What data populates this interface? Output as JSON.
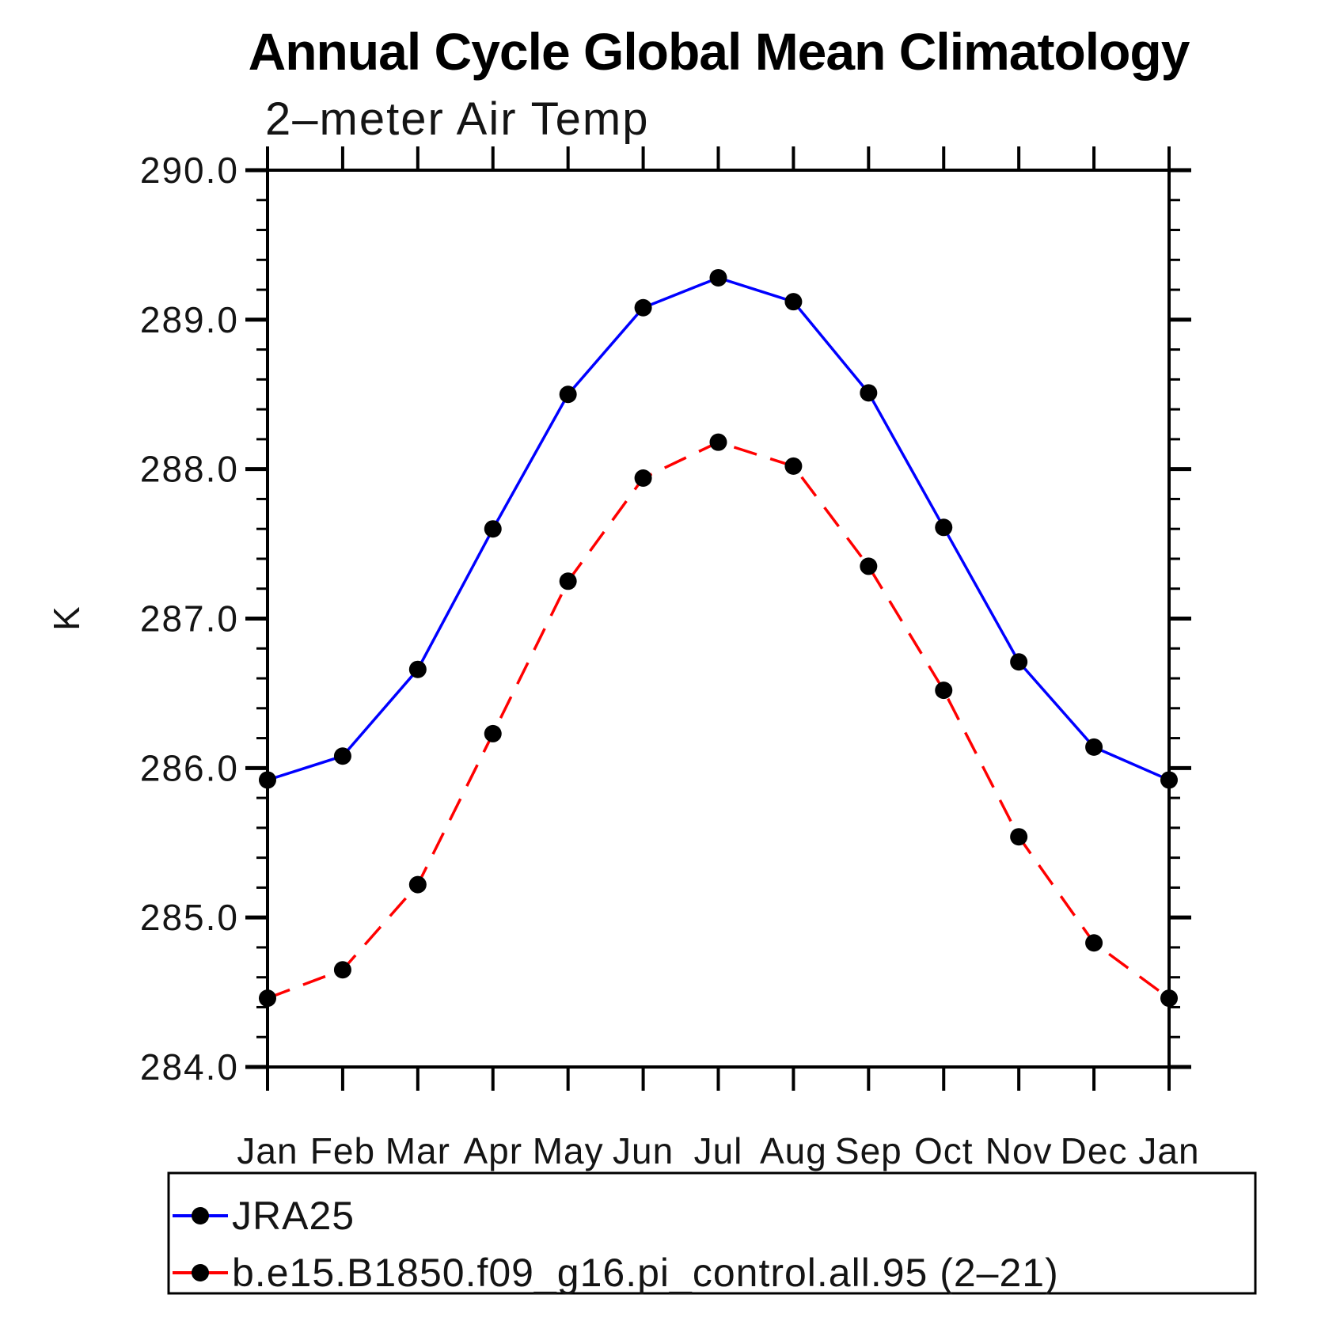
{
  "page": {
    "background": "#ffffff",
    "title": "Annual Cycle Global Mean Climatology"
  },
  "chart_data": {
    "type": "line",
    "title": "Annual Cycle Global Mean Climatology",
    "subtitle": "2–meter Air Temp",
    "ylabel": "K",
    "xlabel": "",
    "ylim": [
      284.0,
      290.0
    ],
    "ytick_step": 1.0,
    "yminor_step": 0.2,
    "ytick_labels": [
      "284.0",
      "285.0",
      "286.0",
      "287.0",
      "288.0",
      "289.0",
      "290.0"
    ],
    "categories": [
      "Jan",
      "Feb",
      "Mar",
      "Apr",
      "May",
      "Jun",
      "Jul",
      "Aug",
      "Sep",
      "Oct",
      "Nov",
      "Dec",
      "Jan"
    ],
    "grid": false,
    "axis_color": "#000000",
    "legend_position": "bottom-left-box",
    "series": [
      {
        "name": "JRA25",
        "color": "#0000ff",
        "line_style": "solid",
        "marker": "filled-circle",
        "marker_color": "#000000",
        "values": [
          285.92,
          286.08,
          286.66,
          287.6,
          288.5,
          289.08,
          289.28,
          289.12,
          288.51,
          287.61,
          286.71,
          286.14,
          285.92
        ]
      },
      {
        "name": "b.e15.B1850.f09_g16.pi_control.all.95 (2–21)",
        "color": "#ff0000",
        "line_style": "dashed",
        "marker": "filled-circle",
        "marker_color": "#000000",
        "values": [
          284.46,
          284.65,
          285.22,
          286.23,
          287.25,
          287.94,
          288.18,
          288.02,
          287.35,
          286.52,
          285.54,
          284.83,
          284.46
        ]
      }
    ]
  }
}
